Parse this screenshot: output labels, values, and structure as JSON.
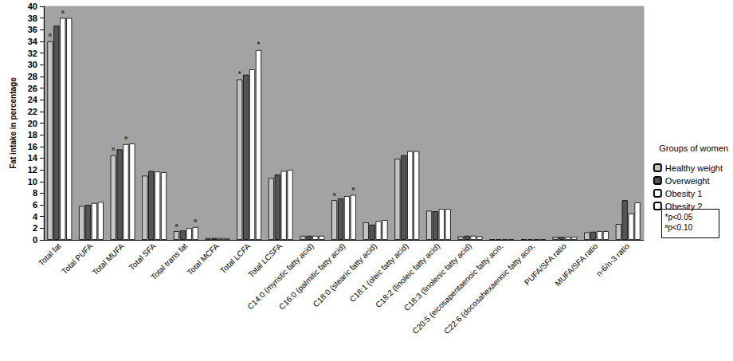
{
  "chart_data": {
    "type": "bar",
    "y_label": "Fat intake in percentage",
    "categories": [
      "Total fat",
      "Total PUFA",
      "Total MUFA",
      "Total SFA",
      "Total trans fat",
      "Total MCFA",
      "Total LCFA",
      "Total LCSFA",
      "C14:0 (myristic fatty acid)",
      "C16:0 (palmitic fatty acid)",
      "C18:0 (stearic fatty acid)",
      "C18:1 (oleic fatty acid)",
      "C18:2 (linoleic fatty acid)",
      "C18:3 (linolenic fatty acid)",
      "C20:5 (eicosapentaenoic fatty acio,",
      "C22:6 (docosahexaenoic fatty acio,",
      "PUFA/SFA ratio",
      "MUFA/SFA ratio",
      "n-6/n-3 ratio"
    ],
    "series": [
      {
        "name": "Healthy weight",
        "color": "#c4c4c4",
        "values": [
          34,
          5.8,
          14.5,
          11,
          1.5,
          0.3,
          27.5,
          10.6,
          0.7,
          6.8,
          3.0,
          13.9,
          5.0,
          0.6,
          0.05,
          0.05,
          0.5,
          1.3,
          2.7
        ]
      },
      {
        "name": "Overweight",
        "color": "#555555",
        "values": [
          36.7,
          6.0,
          15.5,
          11.8,
          1.6,
          0.3,
          28.3,
          11.2,
          0.7,
          7.1,
          2.6,
          14.5,
          4.9,
          0.7,
          0.05,
          0.05,
          0.5,
          1.4,
          6.8
        ]
      },
      {
        "name": "Obesity 1",
        "color": "#ffffff",
        "values": [
          38,
          6.3,
          16.4,
          11.7,
          2.0,
          0.3,
          29.2,
          11.8,
          0.7,
          7.5,
          3.2,
          15.2,
          5.3,
          0.7,
          0.05,
          0.05,
          0.5,
          1.5,
          4.5
        ]
      },
      {
        "name": "Obesity 2",
        "color": "#ffffff",
        "values": [
          38,
          6.5,
          16.5,
          11.6,
          2.2,
          0.3,
          32.5,
          12.0,
          0.7,
          7.7,
          3.4,
          15.2,
          5.3,
          0.6,
          0.05,
          0.05,
          0.5,
          1.5,
          6.4
        ]
      }
    ],
    "annotations": [
      {
        "text": "ª",
        "category": "Total fat",
        "series": "Healthy weight"
      },
      {
        "text": "ª",
        "category": "Total fat",
        "series": "Obesity 1"
      },
      {
        "text": "ª",
        "category": "Total MUFA",
        "series": "Healthy weight"
      },
      {
        "text": "ª",
        "category": "Total MUFA",
        "series": "Obesity 1"
      },
      {
        "text": "ª",
        "category": "Total trans fat",
        "series": "Healthy weight"
      },
      {
        "text": "ª",
        "category": "Total trans fat",
        "series": "Obesity 2"
      },
      {
        "text": "*",
        "category": "Total LCFA",
        "series": "Healthy weight"
      },
      {
        "text": "*",
        "category": "Total LCFA",
        "series": "Obesity 2"
      },
      {
        "text": "ª",
        "category": "C16:0 (palmitic fatty acid)",
        "series": "Healthy weight"
      },
      {
        "text": "ª",
        "category": "C16:0 (palmitic fatty acid)",
        "series": "Obesity 2"
      }
    ],
    "legend_title": "Groups of women",
    "legend": "right",
    "notes": [
      "*p<0.05",
      "ªp<0.10"
    ],
    "ylim": [
      0,
      40
    ],
    "yticks": [
      0,
      2,
      4,
      6,
      8,
      10,
      12,
      14,
      16,
      18,
      20,
      22,
      24,
      26,
      28,
      30,
      32,
      34,
      36,
      38,
      40
    ],
    "grid": false
  }
}
